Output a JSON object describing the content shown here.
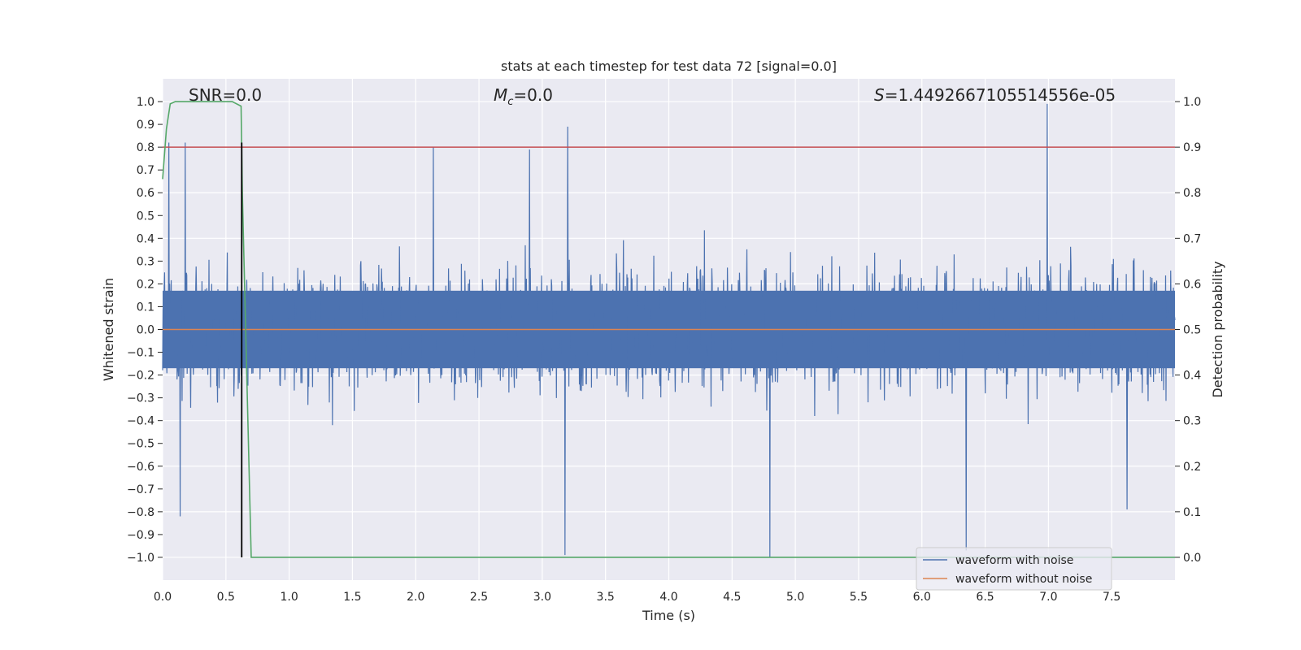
{
  "chart_data": {
    "type": "line",
    "title": "stats at each timestep for test data 72 [signal=0.0]",
    "xlabel": "Time (s)",
    "ylabel": "Whitened strain",
    "y2label": "Detection probability",
    "xlim": [
      0.0,
      8.0
    ],
    "ylim": [
      -1.1,
      1.1
    ],
    "y2lim": [
      -0.05,
      1.05
    ],
    "x_ticks": [
      "0.0",
      "0.5",
      "1.0",
      "1.5",
      "2.0",
      "2.5",
      "3.0",
      "3.5",
      "4.0",
      "4.5",
      "5.0",
      "5.5",
      "6.0",
      "6.5",
      "7.0",
      "7.5"
    ],
    "x_tick_values": [
      0.0,
      0.5,
      1.0,
      1.5,
      2.0,
      2.5,
      3.0,
      3.5,
      4.0,
      4.5,
      5.0,
      5.5,
      6.0,
      6.5,
      7.0,
      7.5
    ],
    "y_ticks": [
      "1.0",
      "0.9",
      "0.8",
      "0.7",
      "0.6",
      "0.5",
      "0.4",
      "0.3",
      "0.2",
      "0.1",
      "0.0",
      "−0.1",
      "−0.2",
      "−0.3",
      "−0.4",
      "−0.5",
      "−0.6",
      "−0.7",
      "−0.8",
      "−0.9",
      "−1.0"
    ],
    "y_tick_values": [
      1.0,
      0.9,
      0.8,
      0.7,
      0.6,
      0.5,
      0.4,
      0.3,
      0.2,
      0.1,
      0.0,
      -0.1,
      -0.2,
      -0.3,
      -0.4,
      -0.5,
      -0.6,
      -0.7,
      -0.8,
      -0.9,
      -1.0
    ],
    "y2_ticks": [
      "1.0",
      "0.9",
      "0.8",
      "0.7",
      "0.6",
      "0.5",
      "0.4",
      "0.3",
      "0.2",
      "0.1",
      "0.0"
    ],
    "y2_tick_values": [
      1.0,
      0.9,
      0.8,
      0.7,
      0.6,
      0.5,
      0.4,
      0.3,
      0.2,
      0.1,
      0.0
    ],
    "annotations": {
      "snr": "SNR=0.0",
      "mc_symbol": "M",
      "mc_sub": "c",
      "mc_value": "=0.0",
      "s_symbol": "S",
      "s_value": "=1.4492667105514556e-05"
    },
    "threshold": {
      "value": 0.9,
      "axis": "y2",
      "color": "#c44e52"
    },
    "marker_line": {
      "x": 0.625,
      "y_from": -1.0,
      "y_to": 0.82,
      "color": "#000000"
    },
    "series": [
      {
        "name": "waveform with noise",
        "axis": "y",
        "color": "#4c72b0",
        "kind": "noise",
        "x_range": [
          0.0,
          8.0
        ],
        "typical_amplitude": 0.4,
        "peak_max": 0.99,
        "peak_min": -1.0,
        "notable_peaks": [
          {
            "x": 0.05,
            "y": 0.82
          },
          {
            "x": 0.18,
            "y": 0.82
          },
          {
            "x": 0.14,
            "y": -0.82
          },
          {
            "x": 2.14,
            "y": 0.8
          },
          {
            "x": 2.9,
            "y": 0.79
          },
          {
            "x": 3.2,
            "y": 0.89
          },
          {
            "x": 3.18,
            "y": -0.99
          },
          {
            "x": 4.8,
            "y": -1.0
          },
          {
            "x": 6.35,
            "y": -0.97
          },
          {
            "x": 6.99,
            "y": 0.99
          },
          {
            "x": 7.62,
            "y": -0.79
          }
        ]
      },
      {
        "name": "waveform without noise",
        "axis": "y",
        "color": "#dd8452",
        "kind": "flat",
        "value": 0.0
      },
      {
        "name": "detection probability",
        "axis": "y2",
        "color": "#55a868",
        "x": [
          0.0,
          0.03,
          0.06,
          0.1,
          0.2,
          0.4,
          0.55,
          0.62,
          0.63,
          0.7,
          8.0
        ],
        "values": [
          0.83,
          0.94,
          0.995,
          1.0,
          1.0,
          1.0,
          1.0,
          0.99,
          0.8,
          0.0,
          0.0
        ]
      }
    ],
    "legend": {
      "position": "lower-right",
      "entries": [
        {
          "label": "waveform with noise",
          "color": "#4c72b0"
        },
        {
          "label": "waveform without noise",
          "color": "#dd8452"
        }
      ]
    },
    "grid": true
  }
}
